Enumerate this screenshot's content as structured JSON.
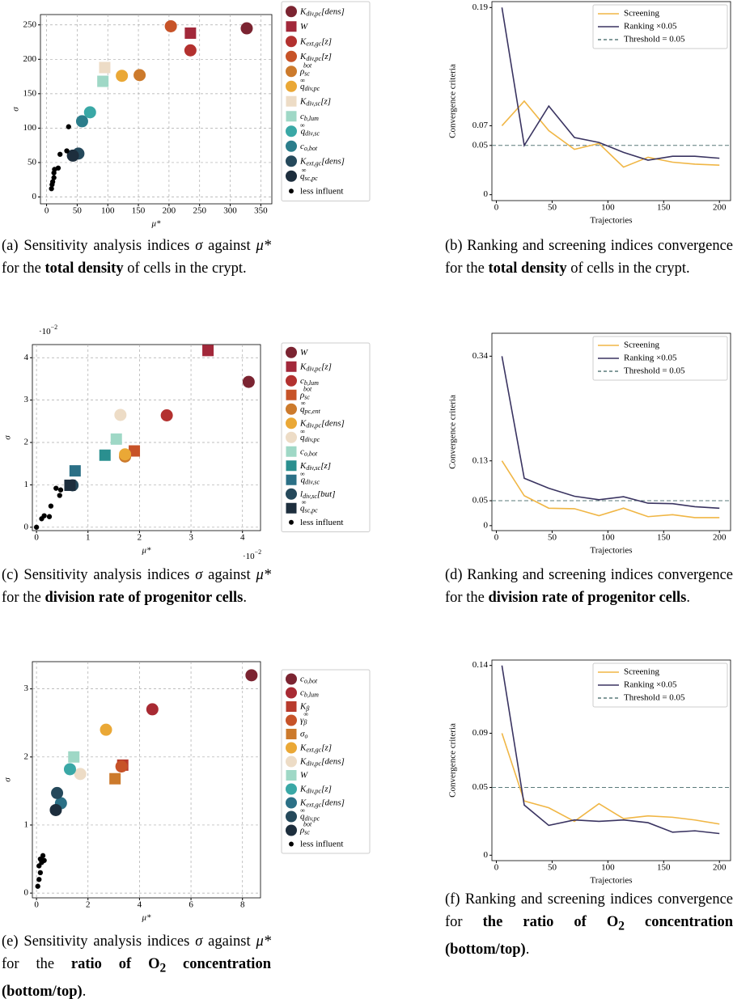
{
  "chart_data": [
    {
      "type": "scatter",
      "xlabel": "μ*",
      "ylabel": "σ",
      "xlim": [
        -10,
        368
      ],
      "ylim": [
        -10,
        265
      ],
      "xticks": [
        0,
        50,
        100,
        150,
        200,
        250,
        300,
        350
      ],
      "yticks": [
        0,
        50,
        100,
        150,
        200,
        250
      ],
      "grid": true,
      "series": [
        {
          "name": "K",
          "sub": "div,pc",
          "tail": "[dens]",
          "color": "#7b2431",
          "marker": "circle",
          "x": [
            327
          ],
          "y": [
            245
          ]
        },
        {
          "name": "W",
          "color": "#a2283a",
          "marker": "square",
          "x": [
            235
          ],
          "y": [
            238
          ]
        },
        {
          "name": "K",
          "sub": "ext,gc",
          "tail": "[z]",
          "color": "#b3312f",
          "marker": "circle",
          "x": [
            235
          ],
          "y": [
            213
          ]
        },
        {
          "name": "K",
          "sub": "div,pc",
          "tail": "[z]",
          "color": "#c75328",
          "marker": "circle",
          "x": [
            203
          ],
          "y": [
            248
          ]
        },
        {
          "name": "ρ",
          "sub": "sc",
          "sup": "bot",
          "color": "#cc7a2c",
          "marker": "circle",
          "x": [
            152
          ],
          "y": [
            177
          ]
        },
        {
          "name": "q",
          "sub": "div,pc",
          "sup": "∞",
          "color": "#eaa836",
          "marker": "circle",
          "x": [
            123
          ],
          "y": [
            176
          ]
        },
        {
          "name": "K",
          "sub": "div,sc",
          "tail": "[z]",
          "color": "#eddcc6",
          "marker": "square",
          "x": [
            95
          ],
          "y": [
            188
          ]
        },
        {
          "name": "c",
          "sub": "b,lum",
          "color": "#9fd8c6",
          "marker": "square",
          "x": [
            92
          ],
          "y": [
            168
          ]
        },
        {
          "name": "q",
          "sub": "div,sc",
          "sup": "∞",
          "color": "#3aa8a6",
          "marker": "circle",
          "x": [
            71
          ],
          "y": [
            123
          ]
        },
        {
          "name": "c",
          "sub": "o,bot",
          "color": "#2b7d8b",
          "marker": "circle",
          "x": [
            58
          ],
          "y": [
            110
          ]
        },
        {
          "name": "K",
          "sub": "ext,gc",
          "tail": "[dens]",
          "color": "#25495b",
          "marker": "circle",
          "x": [
            52
          ],
          "y": [
            63
          ]
        },
        {
          "name": "q",
          "sub": "sc,pc",
          "sup": "∞",
          "color": "#1d2e3d",
          "marker": "circle",
          "x": [
            43
          ],
          "y": [
            60
          ]
        },
        {
          "name": "less influent",
          "color": "#000000",
          "marker": "dot",
          "x": [
            8,
            9,
            10,
            12,
            12,
            13,
            19,
            22,
            33,
            36
          ],
          "y": [
            12,
            18,
            22,
            28,
            35,
            40,
            42,
            62,
            67,
            102
          ]
        }
      ],
      "caption": [
        {
          "text": "(a) Sensitivity analysis indices "
        },
        {
          "text": "σ",
          "italic": true
        },
        {
          "text": " against "
        },
        {
          "text": "μ*",
          "italic": true
        },
        {
          "text": " for the "
        },
        {
          "text": "total density",
          "bold": true
        },
        {
          "text": " of cells in the crypt."
        }
      ]
    },
    {
      "type": "line",
      "xlabel": "Trajectories",
      "ylabel": "Convergence criteria",
      "x": [
        5,
        25,
        47,
        70,
        92,
        114,
        136,
        158,
        178,
        200
      ],
      "xlim": [
        -4,
        210
      ],
      "ylim": [
        -0.006,
        0.196
      ],
      "xticks": [
        0,
        50,
        100,
        150,
        200
      ],
      "yticks": [
        0,
        0.05,
        0.07,
        0.19
      ],
      "legend": "upper right",
      "series": [
        {
          "name": "Screening",
          "color": "#f0b645",
          "values": [
            0.07,
            0.095,
            0.065,
            0.046,
            0.052,
            0.028,
            0.038,
            0.033,
            0.031,
            0.03
          ]
        },
        {
          "name": "Ranking ×0.05",
          "color": "#3a3461",
          "values": [
            0.19,
            0.05,
            0.09,
            0.058,
            0.053,
            0.043,
            0.035,
            0.039,
            0.039,
            0.037
          ]
        }
      ],
      "threshold": {
        "name": "Threshold = 0.05",
        "value": 0.05,
        "color": "#5a7a7a"
      },
      "caption": [
        {
          "text": "(b) Ranking and screening indices convergence for the "
        },
        {
          "text": "total density",
          "bold": true
        },
        {
          "text": " of cells in the crypt."
        }
      ]
    },
    {
      "type": "scatter",
      "xlabel": "μ*",
      "ylabel": "σ",
      "xoffset": {
        "base": "·10",
        "exp": "−2"
      },
      "yoffset": {
        "base": "·10",
        "exp": "−2"
      },
      "xlim": [
        -0.08,
        4.35
      ],
      "ylim": [
        -0.08,
        4.31
      ],
      "xticks": [
        0,
        1,
        2,
        3,
        4
      ],
      "yticks": [
        0,
        1,
        2,
        3,
        4
      ],
      "grid": true,
      "series": [
        {
          "name": "W",
          "color": "#7b2431",
          "marker": "circle",
          "x": [
            4.12
          ],
          "y": [
            3.43
          ]
        },
        {
          "name": "K",
          "sub": "div,pc",
          "tail": "[z]",
          "color": "#a2283a",
          "marker": "square",
          "x": [
            3.33
          ],
          "y": [
            4.17
          ]
        },
        {
          "name": "c",
          "sub": "b,lum",
          "color": "#b3312f",
          "marker": "circle",
          "x": [
            2.53
          ],
          "y": [
            2.64
          ]
        },
        {
          "name": "ρ",
          "sub": "sc",
          "sup": "bot",
          "color": "#c75328",
          "marker": "square",
          "x": [
            1.9
          ],
          "y": [
            1.8
          ]
        },
        {
          "name": "q",
          "sub": "pc,ent",
          "sup": "∞",
          "color": "#cc7a2c",
          "marker": "circle",
          "x": [
            1.72
          ],
          "y": [
            1.67
          ]
        },
        {
          "name": "K",
          "sub": "div,pc",
          "tail": "[dens]",
          "color": "#eaa836",
          "marker": "circle",
          "x": [
            1.72
          ],
          "y": [
            1.72
          ]
        },
        {
          "name": "q",
          "sub": "div,pc",
          "sup": "∞",
          "color": "#eddcc6",
          "marker": "circle",
          "x": [
            1.63
          ],
          "y": [
            2.65
          ]
        },
        {
          "name": "c",
          "sub": "o,bot",
          "color": "#9fd8c6",
          "marker": "square",
          "x": [
            1.55
          ],
          "y": [
            2.08
          ]
        },
        {
          "name": "K",
          "sub": "div,sc",
          "tail": "[z]",
          "color": "#2a8f8f",
          "marker": "square",
          "x": [
            1.33
          ],
          "y": [
            1.7
          ]
        },
        {
          "name": "q",
          "sub": "div,sc",
          "sup": "∞",
          "color": "#2b7086",
          "marker": "square",
          "x": [
            0.75
          ],
          "y": [
            1.33
          ]
        },
        {
          "name": "l",
          "sub": "div,sc",
          "tail": "[but]",
          "color": "#25495b",
          "marker": "circle",
          "x": [
            0.7
          ],
          "y": [
            0.99
          ]
        },
        {
          "name": "q",
          "sub": "sc,pc",
          "sup": "∞",
          "color": "#1d2e3d",
          "marker": "square",
          "x": [
            0.65
          ],
          "y": [
            0.99
          ]
        },
        {
          "name": "less influent",
          "color": "#000000",
          "marker": "dot",
          "x": [
            0,
            0.1,
            0.15,
            0.25,
            0.28,
            0.38,
            0.45,
            0.47
          ],
          "y": [
            0,
            0.2,
            0.27,
            0.25,
            0.5,
            0.92,
            0.75,
            0.88
          ]
        }
      ],
      "caption": [
        {
          "text": "(c) Sensitivity analysis indices "
        },
        {
          "text": "σ",
          "italic": true
        },
        {
          "text": " against "
        },
        {
          "text": "μ*",
          "italic": true
        },
        {
          "text": " for the "
        },
        {
          "text": "division rate of progenitor cells",
          "bold": true
        },
        {
          "text": "."
        }
      ]
    },
    {
      "type": "line",
      "xlabel": "Trajectories",
      "ylabel": "Convergence criteria",
      "x": [
        5,
        25,
        47,
        70,
        92,
        114,
        136,
        158,
        178,
        200
      ],
      "xlim": [
        -4,
        210
      ],
      "ylim": [
        -0.01,
        0.386
      ],
      "xticks": [
        0,
        50,
        100,
        150,
        200
      ],
      "yticks": [
        0,
        0.05,
        0.13,
        0.34
      ],
      "legend": "upper right",
      "series": [
        {
          "name": "Screening",
          "color": "#f0b645",
          "values": [
            0.13,
            0.06,
            0.035,
            0.034,
            0.02,
            0.035,
            0.018,
            0.022,
            0.016,
            0.016
          ]
        },
        {
          "name": "Ranking ×0.05",
          "color": "#3a3461",
          "values": [
            0.34,
            0.095,
            0.075,
            0.059,
            0.052,
            0.058,
            0.045,
            0.044,
            0.038,
            0.035
          ]
        }
      ],
      "threshold": {
        "name": "Threshold = 0.05",
        "value": 0.05,
        "color": "#5a7a7a"
      },
      "caption": [
        {
          "text": "(d) Ranking and screening indices convergence for the "
        },
        {
          "text": "division rate of progenitor cells",
          "bold": true
        },
        {
          "text": "."
        }
      ]
    },
    {
      "type": "scatter",
      "xlabel": "μ*",
      "ylabel": "σ",
      "xlim": [
        -0.16,
        8.7
      ],
      "ylim": [
        -0.07,
        3.4
      ],
      "xticks": [
        0,
        2,
        4,
        6,
        8
      ],
      "yticks": [
        0,
        1,
        2,
        3
      ],
      "grid": true,
      "series": [
        {
          "name": "c",
          "sub": "o,bot",
          "color": "#7b2431",
          "marker": "circle",
          "x": [
            8.35
          ],
          "y": [
            3.2
          ]
        },
        {
          "name": "c",
          "sub": "b,lum",
          "color": "#a82a33",
          "marker": "circle",
          "x": [
            4.5
          ],
          "y": [
            2.7
          ]
        },
        {
          "name": "K",
          "sub": "β",
          "color": "#b83b2d",
          "marker": "square",
          "x": [
            3.35
          ],
          "y": [
            1.88
          ]
        },
        {
          "name": "γ",
          "sub": "β",
          "sup": "∞",
          "color": "#c75328",
          "marker": "circle",
          "x": [
            3.3
          ],
          "y": [
            1.86
          ]
        },
        {
          "name": "σ",
          "sub": "o",
          "color": "#cc7a2c",
          "marker": "square",
          "x": [
            3.05
          ],
          "y": [
            1.68
          ]
        },
        {
          "name": "K",
          "sub": "ext,gc",
          "tail": "[z]",
          "color": "#eaa836",
          "marker": "circle",
          "x": [
            2.7
          ],
          "y": [
            2.4
          ]
        },
        {
          "name": "K",
          "sub": "div,pc",
          "tail": "[dens]",
          "color": "#eddcc6",
          "marker": "circle",
          "x": [
            1.7
          ],
          "y": [
            1.75
          ]
        },
        {
          "name": "W",
          "color": "#9fd8c6",
          "marker": "square",
          "x": [
            1.45
          ],
          "y": [
            2.0
          ]
        },
        {
          "name": "K",
          "sub": "div,pc",
          "tail": "[z]",
          "color": "#3aa8a6",
          "marker": "circle",
          "x": [
            1.3
          ],
          "y": [
            1.82
          ]
        },
        {
          "name": "K",
          "sub": "ext,gc",
          "tail": "[dens]",
          "color": "#2b7086",
          "marker": "circle",
          "x": [
            0.95
          ],
          "y": [
            1.32
          ]
        },
        {
          "name": "q",
          "sub": "div,pc",
          "sup": "∞",
          "color": "#25495b",
          "marker": "circle",
          "x": [
            0.8
          ],
          "y": [
            1.47
          ]
        },
        {
          "name": "ρ",
          "sub": "sc",
          "sup": "bot",
          "color": "#1d2e3d",
          "marker": "circle",
          "x": [
            0.75
          ],
          "y": [
            1.22
          ]
        },
        {
          "name": "less influent",
          "color": "#000000",
          "marker": "dot",
          "x": [
            0.05,
            0.1,
            0.15,
            0.1,
            0.2,
            0.3,
            0.25,
            0.15
          ],
          "y": [
            0.1,
            0.2,
            0.3,
            0.4,
            0.45,
            0.48,
            0.55,
            0.5
          ]
        }
      ],
      "caption": [
        {
          "text": "(e) Sensitivity analysis indices "
        },
        {
          "text": "σ",
          "italic": true
        },
        {
          "text": " against "
        },
        {
          "text": "μ*",
          "italic": true
        },
        {
          "text": " for the "
        },
        {
          "text": "ratio of O",
          "bold": true
        },
        {
          "text": "2",
          "bold": true,
          "sub": true
        },
        {
          "text": " concentration (bottom/top)",
          "bold": true
        },
        {
          "text": "."
        }
      ]
    },
    {
      "type": "line",
      "xlabel": "Trajectories",
      "ylabel": "Convergence criteria",
      "x": [
        5,
        25,
        47,
        70,
        92,
        114,
        136,
        158,
        178,
        200
      ],
      "xlim": [
        -4,
        210
      ],
      "ylim": [
        -0.004,
        0.144
      ],
      "xticks": [
        0,
        50,
        100,
        150,
        200
      ],
      "yticks": [
        0,
        0.05,
        0.09,
        0.14
      ],
      "legend": "upper right",
      "series": [
        {
          "name": "Screening",
          "color": "#f0b645",
          "values": [
            0.09,
            0.04,
            0.035,
            0.025,
            0.038,
            0.027,
            0.029,
            0.028,
            0.026,
            0.023
          ]
        },
        {
          "name": "Ranking ×0.05",
          "color": "#3a3461",
          "values": [
            0.14,
            0.037,
            0.022,
            0.026,
            0.025,
            0.026,
            0.024,
            0.017,
            0.018,
            0.016
          ]
        }
      ],
      "threshold": {
        "name": "Threshold = 0.05",
        "value": 0.05,
        "color": "#5a7a7a"
      },
      "caption": [
        {
          "text": "(f) Ranking and screening indices convergence for "
        },
        {
          "text": "the ratio of O",
          "bold": true
        },
        {
          "text": "2",
          "bold": true,
          "sub": true
        },
        {
          "text": " concentration (bottom/top)",
          "bold": true
        },
        {
          "text": "."
        }
      ]
    }
  ]
}
